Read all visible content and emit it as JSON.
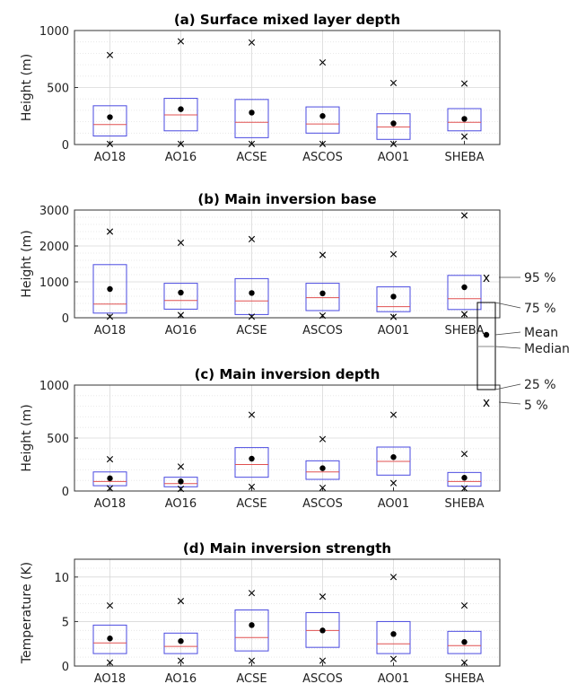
{
  "legend": {
    "p95": "95 %",
    "p75": "75 %",
    "mean": "Mean",
    "median": "Median",
    "p25": "25 %",
    "p5": "5 %",
    "marker_x": "x"
  },
  "colors": {
    "box": "#4a4ae0",
    "median": "#e05050",
    "mean": "#000000",
    "whisker_marker": "#000000",
    "grid": "#d8d8d8",
    "axis": "#333333"
  },
  "chart_data": [
    {
      "type": "box",
      "title": "(a) Surface mixed layer depth",
      "ylabel": "Height (m)",
      "xlabel": "",
      "ylim": [
        0,
        1000
      ],
      "yticks": [
        0,
        500,
        1000
      ],
      "grid": true,
      "categories": [
        "AO18",
        "AO16",
        "ACSE",
        "ASCOS",
        "AO01",
        "SHEBA"
      ],
      "p5": [
        5,
        5,
        5,
        5,
        5,
        70
      ],
      "p25": [
        75,
        120,
        60,
        100,
        45,
        120
      ],
      "median": [
        175,
        260,
        195,
        180,
        155,
        195
      ],
      "mean": [
        240,
        310,
        280,
        250,
        185,
        225
      ],
      "p75": [
        340,
        405,
        395,
        330,
        270,
        315
      ],
      "p95": [
        785,
        905,
        895,
        720,
        540,
        535
      ]
    },
    {
      "type": "box",
      "title": "(b) Main inversion base",
      "ylabel": "Height (m)",
      "xlabel": "",
      "ylim": [
        0,
        3000
      ],
      "yticks": [
        0,
        1000,
        2000,
        3000
      ],
      "grid": true,
      "categories": [
        "AO18",
        "AO16",
        "ACSE",
        "ASCOS",
        "AO01",
        "SHEBA"
      ],
      "p5": [
        30,
        75,
        30,
        60,
        25,
        100
      ],
      "p25": [
        130,
        240,
        90,
        200,
        170,
        230
      ],
      "median": [
        380,
        480,
        470,
        560,
        310,
        530
      ],
      "mean": [
        800,
        700,
        690,
        680,
        590,
        850
      ],
      "p75": [
        1480,
        960,
        1090,
        960,
        860,
        1180
      ],
      "p95": [
        2400,
        2090,
        2190,
        1750,
        1770,
        2850
      ]
    },
    {
      "type": "box",
      "title": "(c) Main inversion depth",
      "ylabel": "Height (m)",
      "xlabel": "",
      "ylim": [
        0,
        1000
      ],
      "yticks": [
        0,
        500,
        1000
      ],
      "grid": true,
      "categories": [
        "AO18",
        "AO16",
        "ACSE",
        "ASCOS",
        "AO01",
        "SHEBA"
      ],
      "p5": [
        25,
        20,
        40,
        30,
        75,
        25
      ],
      "p25": [
        50,
        40,
        130,
        110,
        150,
        45
      ],
      "median": [
        90,
        70,
        250,
        180,
        280,
        90
      ],
      "mean": [
        120,
        90,
        305,
        215,
        320,
        125
      ],
      "p75": [
        180,
        130,
        410,
        285,
        415,
        175
      ],
      "p95": [
        300,
        230,
        720,
        490,
        720,
        350
      ]
    },
    {
      "type": "box",
      "title": "(d) Main inversion strength",
      "ylabel": "Temperature (K)",
      "xlabel": "",
      "ylim": [
        0,
        12
      ],
      "yticks": [
        0,
        5,
        10
      ],
      "grid": true,
      "categories": [
        "AO18",
        "AO16",
        "ACSE",
        "ASCOS",
        "AO01",
        "SHEBA"
      ],
      "p5": [
        0.4,
        0.6,
        0.6,
        0.6,
        0.8,
        0.4
      ],
      "p25": [
        1.4,
        1.4,
        1.7,
        2.1,
        1.4,
        1.4
      ],
      "median": [
        2.6,
        2.2,
        3.2,
        4.0,
        2.5,
        2.3
      ],
      "mean": [
        3.1,
        2.8,
        4.6,
        4.0,
        3.6,
        2.7
      ],
      "p75": [
        4.6,
        3.7,
        6.3,
        6.0,
        5.0,
        3.9
      ],
      "p95": [
        6.8,
        7.3,
        8.2,
        7.8,
        10.0,
        6.8
      ]
    }
  ]
}
